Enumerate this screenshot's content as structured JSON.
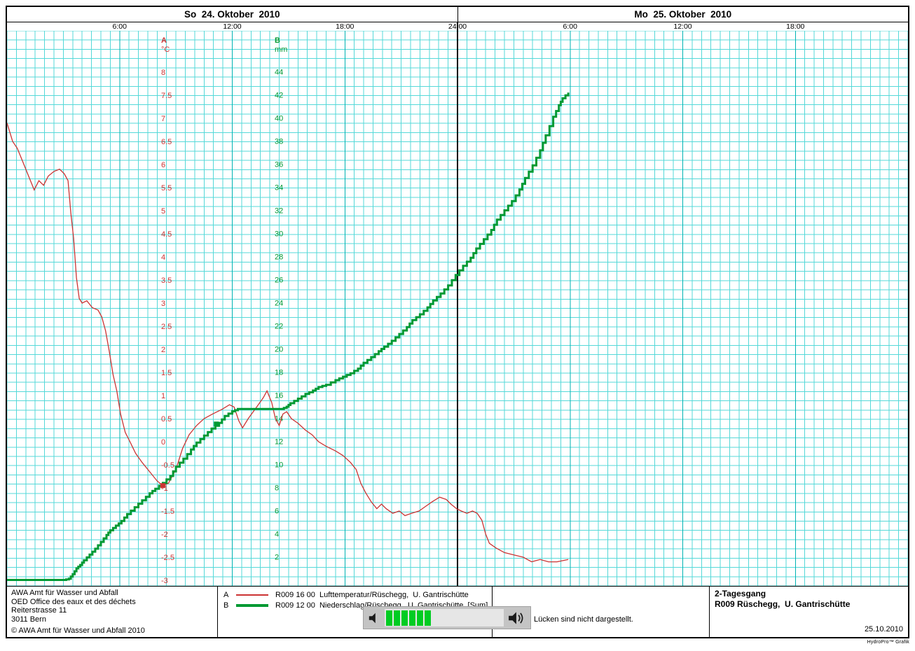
{
  "header": {
    "day1": "So  24. Oktober  2010",
    "day2": "Mo  25. Oktober  2010",
    "time_ticks": [
      {
        "t": 6,
        "label": "6:00"
      },
      {
        "t": 12,
        "label": "12:00"
      },
      {
        "t": 18,
        "label": "18:00"
      },
      {
        "t": 24,
        "label": "24:00"
      },
      {
        "t": 30,
        "label": "6:00"
      },
      {
        "t": 36,
        "label": "12:00"
      },
      {
        "t": 42,
        "label": "18:00"
      }
    ]
  },
  "axes": {
    "a": {
      "key": "A",
      "unit": "°C",
      "ticks": [
        "8",
        "7.5",
        "7",
        "6.5",
        "6",
        "5.5",
        "5",
        "4.5",
        "4",
        "3.5",
        "3",
        "2.5",
        "2",
        "1.5",
        "1",
        "0.5",
        "0",
        "-0.5",
        "-1",
        "-1.5",
        "-2",
        "-2.5",
        "-3"
      ]
    },
    "b": {
      "key": "B",
      "unit": "mm",
      "ticks": [
        "44",
        "42",
        "40",
        "38",
        "36",
        "34",
        "32",
        "30",
        "28",
        "26",
        "24",
        "22",
        "20",
        "18",
        "16",
        "14",
        "12",
        "10",
        "8",
        "6",
        "4",
        "2"
      ]
    }
  },
  "colors": {
    "grid_minor": "#55d8d8",
    "grid_major": "#00b3b3",
    "midnight": "#000000",
    "temperature": "#cc3333",
    "precipitation": "#009933",
    "volume_bar": "#00cc22"
  },
  "chart_data": {
    "type": "line",
    "title": "2-Tagesgang R009 Rüschegg, U. Gantrischütte",
    "x_unit": "hours from 24.10.2010 00:00",
    "x_range": [
      0,
      48
    ],
    "x_tick_hours": [
      6,
      12,
      18,
      24,
      30,
      36,
      42
    ],
    "day_boundary_hour": 24,
    "grid": true,
    "axis_a": {
      "label": "°C",
      "range": [
        -3,
        8
      ],
      "tick_step": 0.5
    },
    "axis_b": {
      "label": "mm",
      "range": [
        0,
        44
      ],
      "tick_step": 2
    },
    "series": [
      {
        "id": "A",
        "name": "R009 16 00 Lufttemperatur/Rüschegg, U. Gantrischütte",
        "axis": "a",
        "style": "line",
        "points": [
          [
            0.0,
            6.9
          ],
          [
            0.3,
            6.5
          ],
          [
            0.55,
            6.35
          ],
          [
            0.85,
            6.05
          ],
          [
            1.2,
            5.7
          ],
          [
            1.45,
            5.45
          ],
          [
            1.7,
            5.65
          ],
          [
            1.95,
            5.55
          ],
          [
            2.2,
            5.75
          ],
          [
            2.5,
            5.85
          ],
          [
            2.8,
            5.9
          ],
          [
            3.05,
            5.8
          ],
          [
            3.25,
            5.65
          ],
          [
            3.4,
            4.95
          ],
          [
            3.55,
            4.4
          ],
          [
            3.7,
            3.55
          ],
          [
            3.85,
            3.1
          ],
          [
            4.0,
            3.0
          ],
          [
            4.25,
            3.05
          ],
          [
            4.55,
            2.9
          ],
          [
            4.85,
            2.85
          ],
          [
            5.05,
            2.7
          ],
          [
            5.25,
            2.4
          ],
          [
            5.45,
            1.95
          ],
          [
            5.65,
            1.45
          ],
          [
            5.85,
            1.1
          ],
          [
            6.05,
            0.6
          ],
          [
            6.3,
            0.2
          ],
          [
            6.55,
            0.0
          ],
          [
            6.85,
            -0.25
          ],
          [
            7.2,
            -0.45
          ],
          [
            7.6,
            -0.65
          ],
          [
            8.0,
            -0.85
          ],
          [
            8.3,
            -0.95
          ],
          [
            8.6,
            -0.9
          ],
          [
            9.0,
            -0.6
          ],
          [
            9.35,
            -0.15
          ],
          [
            9.7,
            0.15
          ],
          [
            10.1,
            0.35
          ],
          [
            10.5,
            0.5
          ],
          [
            10.95,
            0.6
          ],
          [
            11.45,
            0.7
          ],
          [
            11.85,
            0.8
          ],
          [
            12.1,
            0.75
          ],
          [
            12.35,
            0.45
          ],
          [
            12.55,
            0.3
          ],
          [
            12.85,
            0.5
          ],
          [
            13.3,
            0.75
          ],
          [
            13.65,
            0.95
          ],
          [
            13.85,
            1.1
          ],
          [
            14.1,
            0.85
          ],
          [
            14.3,
            0.5
          ],
          [
            14.5,
            0.35
          ],
          [
            14.7,
            0.6
          ],
          [
            14.9,
            0.65
          ],
          [
            15.15,
            0.5
          ],
          [
            15.5,
            0.4
          ],
          [
            15.9,
            0.25
          ],
          [
            16.25,
            0.15
          ],
          [
            16.6,
            0.0
          ],
          [
            17.0,
            -0.1
          ],
          [
            17.5,
            -0.2
          ],
          [
            17.9,
            -0.3
          ],
          [
            18.3,
            -0.45
          ],
          [
            18.6,
            -0.6
          ],
          [
            18.85,
            -0.9
          ],
          [
            19.1,
            -1.1
          ],
          [
            19.4,
            -1.3
          ],
          [
            19.7,
            -1.45
          ],
          [
            19.95,
            -1.35
          ],
          [
            20.2,
            -1.45
          ],
          [
            20.55,
            -1.55
          ],
          [
            20.9,
            -1.5
          ],
          [
            21.2,
            -1.6
          ],
          [
            21.55,
            -1.55
          ],
          [
            21.95,
            -1.5
          ],
          [
            22.3,
            -1.4
          ],
          [
            22.65,
            -1.3
          ],
          [
            23.05,
            -1.2
          ],
          [
            23.4,
            -1.25
          ],
          [
            23.65,
            -1.35
          ],
          [
            23.95,
            -1.45
          ],
          [
            24.2,
            -1.5
          ],
          [
            24.5,
            -1.55
          ],
          [
            24.8,
            -1.5
          ],
          [
            25.05,
            -1.55
          ],
          [
            25.3,
            -1.7
          ],
          [
            25.5,
            -2.0
          ],
          [
            25.7,
            -2.2
          ],
          [
            26.05,
            -2.3
          ],
          [
            26.5,
            -2.4
          ],
          [
            27.0,
            -2.45
          ],
          [
            27.5,
            -2.5
          ],
          [
            27.95,
            -2.6
          ],
          [
            28.4,
            -2.55
          ],
          [
            28.85,
            -2.6
          ],
          [
            29.3,
            -2.6
          ],
          [
            29.9,
            -2.55
          ]
        ]
      },
      {
        "id": "B",
        "name": "R009 12 00 Niederschlag/Rüschegg, U. Gantrischütte [Sum]",
        "axis": "b",
        "style": "step",
        "points": [
          [
            0.0,
            0
          ],
          [
            3.0,
            0
          ],
          [
            3.3,
            0.1
          ],
          [
            3.5,
            0.5
          ],
          [
            3.7,
            1.0
          ],
          [
            3.9,
            1.3
          ],
          [
            4.1,
            1.7
          ],
          [
            4.4,
            2.2
          ],
          [
            4.7,
            2.7
          ],
          [
            5.0,
            3.3
          ],
          [
            5.3,
            3.9
          ],
          [
            5.5,
            4.3
          ],
          [
            5.8,
            4.7
          ],
          [
            6.1,
            5.1
          ],
          [
            6.4,
            5.7
          ],
          [
            6.8,
            6.3
          ],
          [
            7.2,
            6.9
          ],
          [
            7.6,
            7.5
          ],
          [
            7.9,
            7.9
          ],
          [
            8.3,
            8.4
          ],
          [
            8.7,
            9.0
          ],
          [
            9.0,
            9.8
          ],
          [
            9.4,
            10.5
          ],
          [
            9.8,
            11.3
          ],
          [
            10.1,
            11.9
          ],
          [
            10.5,
            12.5
          ],
          [
            10.9,
            13.1
          ],
          [
            11.3,
            13.6
          ],
          [
            11.6,
            14.2
          ],
          [
            12.0,
            14.6
          ],
          [
            12.3,
            14.8
          ],
          [
            14.6,
            14.8
          ],
          [
            14.9,
            15.0
          ],
          [
            15.1,
            15.3
          ],
          [
            15.5,
            15.7
          ],
          [
            15.9,
            16.1
          ],
          [
            16.3,
            16.4
          ],
          [
            16.6,
            16.7
          ],
          [
            17.0,
            16.9
          ],
          [
            17.5,
            17.3
          ],
          [
            17.9,
            17.6
          ],
          [
            18.3,
            17.9
          ],
          [
            18.7,
            18.3
          ],
          [
            19.0,
            18.8
          ],
          [
            19.4,
            19.3
          ],
          [
            19.8,
            19.8
          ],
          [
            20.1,
            20.2
          ],
          [
            20.5,
            20.7
          ],
          [
            20.9,
            21.3
          ],
          [
            21.3,
            21.9
          ],
          [
            21.6,
            22.5
          ],
          [
            22.0,
            23.0
          ],
          [
            22.4,
            23.6
          ],
          [
            22.7,
            24.2
          ],
          [
            23.1,
            24.8
          ],
          [
            23.5,
            25.5
          ],
          [
            23.9,
            26.4
          ],
          [
            24.3,
            27.2
          ],
          [
            24.7,
            27.9
          ],
          [
            25.0,
            28.7
          ],
          [
            25.4,
            29.5
          ],
          [
            25.8,
            30.3
          ],
          [
            26.1,
            31.2
          ],
          [
            26.5,
            32.0
          ],
          [
            26.9,
            32.8
          ],
          [
            27.3,
            33.8
          ],
          [
            27.6,
            34.8
          ],
          [
            28.0,
            35.9
          ],
          [
            28.4,
            37.2
          ],
          [
            28.7,
            38.5
          ],
          [
            29.1,
            40.1
          ],
          [
            29.4,
            41.1
          ],
          [
            29.6,
            41.7
          ],
          [
            29.9,
            42.2
          ]
        ]
      }
    ],
    "markers": [
      {
        "series": "A",
        "t": 8.3,
        "value": -0.95
      },
      {
        "series": "B",
        "t": 11.15,
        "value": 13.5
      }
    ]
  },
  "footer": {
    "address": [
      "AWA Amt für Wasser und Abfall",
      "OED Office des eaux et des déchets",
      "Reiterstrasse 11",
      "3011 Bern"
    ],
    "copyright": "© AWA Amt für Wasser und Abfall 2010",
    "legend": [
      {
        "key": "A",
        "text": "R009 16 00  Lufttemperatur/Rüschegg,  U. Gantrischütte"
      },
      {
        "key": "B",
        "text": "R009 12 00  Niederschlag/Rüschegg,  U. Gantrischütte  [Sum]"
      }
    ],
    "note": "Lücken sind nicht dargestellt.",
    "title_box": {
      "line1": "2-Tagesgang",
      "line2": "R009 Rüschegg,  U. Gantrischütte"
    },
    "date": "25.10.2010"
  },
  "volume_overlay": {
    "bars_filled": 6,
    "icons": [
      "speaker-icon",
      "speaker-loud-icon"
    ]
  },
  "branding": "HydroPro™ Grafik"
}
